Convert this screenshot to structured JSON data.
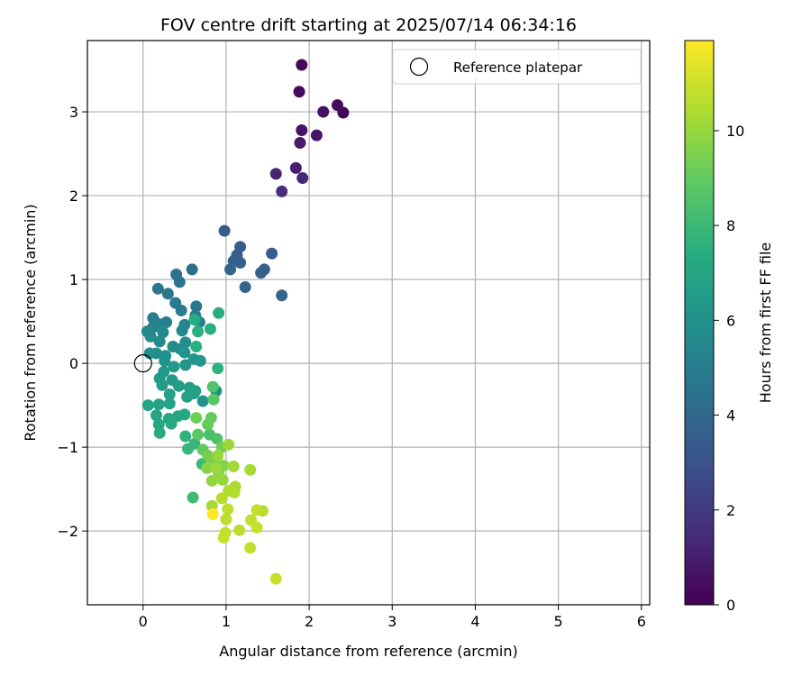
{
  "chart_data": {
    "type": "scatter",
    "title": "FOV centre drift starting at 2025/07/14 06:34:16",
    "xlabel": "Angular distance from reference (arcmin)",
    "ylabel": "Rotation from reference (arcmin)",
    "xlim": [
      -0.67,
      6.1
    ],
    "ylim": [
      -2.88,
      3.85
    ],
    "x_ticks": [
      0,
      1,
      2,
      3,
      4,
      5,
      6
    ],
    "y_ticks": [
      -2,
      -1,
      0,
      1,
      2,
      3
    ],
    "x_tick_labels": [
      "0",
      "1",
      "2",
      "3",
      "4",
      "5",
      "6"
    ],
    "y_tick_labels": [
      "−2",
      "−1",
      "0",
      "1",
      "2",
      "3"
    ],
    "grid": true,
    "legend": {
      "position": "top-right",
      "entries": [
        "Reference platepar"
      ]
    },
    "reference_point": {
      "x": 0,
      "y": 0
    },
    "colorbar": {
      "label": "Hours from first FF file",
      "colormap": "viridis",
      "range": [
        0,
        11.9
      ],
      "ticks": [
        0,
        2,
        4,
        6,
        8,
        10
      ],
      "tick_labels": [
        "0",
        "2",
        "4",
        "6",
        "8",
        "10"
      ]
    },
    "points": [
      {
        "x": 1.91,
        "y": 3.56,
        "h": 0.2
      },
      {
        "x": 1.88,
        "y": 3.24,
        "h": 0.3
      },
      {
        "x": 2.34,
        "y": 3.08,
        "h": 0.4
      },
      {
        "x": 2.41,
        "y": 2.99,
        "h": 0.2
      },
      {
        "x": 2.17,
        "y": 3.0,
        "h": 0.5
      },
      {
        "x": 1.91,
        "y": 2.78,
        "h": 0.6
      },
      {
        "x": 2.09,
        "y": 2.72,
        "h": 0.7
      },
      {
        "x": 1.89,
        "y": 2.63,
        "h": 0.8
      },
      {
        "x": 1.84,
        "y": 2.33,
        "h": 1.0
      },
      {
        "x": 1.6,
        "y": 2.26,
        "h": 1.2
      },
      {
        "x": 1.92,
        "y": 2.21,
        "h": 1.3
      },
      {
        "x": 1.67,
        "y": 2.05,
        "h": 1.5
      },
      {
        "x": 0.98,
        "y": 1.58,
        "h": 3.4
      },
      {
        "x": 1.17,
        "y": 1.39,
        "h": 3.5
      },
      {
        "x": 1.13,
        "y": 1.29,
        "h": 3.5
      },
      {
        "x": 1.55,
        "y": 1.31,
        "h": 3.4
      },
      {
        "x": 1.09,
        "y": 1.22,
        "h": 3.6
      },
      {
        "x": 1.17,
        "y": 1.2,
        "h": 3.7
      },
      {
        "x": 1.05,
        "y": 1.12,
        "h": 3.8
      },
      {
        "x": 1.46,
        "y": 1.12,
        "h": 3.6
      },
      {
        "x": 1.42,
        "y": 1.08,
        "h": 3.7
      },
      {
        "x": 1.23,
        "y": 0.91,
        "h": 3.9
      },
      {
        "x": 1.67,
        "y": 0.81,
        "h": 3.8
      },
      {
        "x": 0.59,
        "y": 1.12,
        "h": 4.3
      },
      {
        "x": 0.4,
        "y": 1.06,
        "h": 4.4
      },
      {
        "x": 0.44,
        "y": 0.97,
        "h": 4.5
      },
      {
        "x": 0.18,
        "y": 0.89,
        "h": 4.6
      },
      {
        "x": 0.3,
        "y": 0.83,
        "h": 4.7
      },
      {
        "x": 0.39,
        "y": 0.72,
        "h": 4.8
      },
      {
        "x": 0.64,
        "y": 0.68,
        "h": 4.6
      },
      {
        "x": 0.46,
        "y": 0.63,
        "h": 4.9
      },
      {
        "x": 0.63,
        "y": 0.57,
        "h": 5.0
      },
      {
        "x": 0.12,
        "y": 0.54,
        "h": 5.0
      },
      {
        "x": 0.28,
        "y": 0.49,
        "h": 5.1
      },
      {
        "x": 0.19,
        "y": 0.47,
        "h": 5.2
      },
      {
        "x": 0.5,
        "y": 0.46,
        "h": 5.3
      },
      {
        "x": 0.68,
        "y": 0.49,
        "h": 5.2
      },
      {
        "x": 0.12,
        "y": 0.43,
        "h": 5.3
      },
      {
        "x": 0.05,
        "y": 0.38,
        "h": 5.4
      },
      {
        "x": 0.24,
        "y": 0.37,
        "h": 5.5
      },
      {
        "x": 0.47,
        "y": 0.39,
        "h": 5.5
      },
      {
        "x": 0.09,
        "y": 0.32,
        "h": 5.6
      },
      {
        "x": 0.2,
        "y": 0.26,
        "h": 5.6
      },
      {
        "x": 0.51,
        "y": 0.25,
        "h": 5.7
      },
      {
        "x": 0.36,
        "y": 0.2,
        "h": 5.8
      },
      {
        "x": 0.45,
        "y": 0.17,
        "h": 5.8
      },
      {
        "x": 0.08,
        "y": 0.12,
        "h": 5.9
      },
      {
        "x": 0.16,
        "y": 0.12,
        "h": 5.9
      },
      {
        "x": 0.27,
        "y": 0.09,
        "h": 6.0
      },
      {
        "x": 0.26,
        "y": 0.03,
        "h": 6.0
      },
      {
        "x": 0.5,
        "y": 0.13,
        "h": 6.1
      },
      {
        "x": 0.61,
        "y": 0.05,
        "h": 6.2
      },
      {
        "x": 0.69,
        "y": 0.03,
        "h": 6.2
      },
      {
        "x": 0.37,
        "y": -0.04,
        "h": 6.3
      },
      {
        "x": 0.51,
        "y": -0.02,
        "h": 6.2
      },
      {
        "x": 0.25,
        "y": -0.1,
        "h": 6.3
      },
      {
        "x": 0.2,
        "y": -0.18,
        "h": 6.4
      },
      {
        "x": 0.35,
        "y": -0.2,
        "h": 6.4
      },
      {
        "x": 0.23,
        "y": -0.26,
        "h": 6.5
      },
      {
        "x": 0.43,
        "y": -0.27,
        "h": 6.5
      },
      {
        "x": 0.56,
        "y": -0.29,
        "h": 6.6
      },
      {
        "x": 0.63,
        "y": -0.33,
        "h": 6.6
      },
      {
        "x": 0.53,
        "y": -0.4,
        "h": 6.7
      },
      {
        "x": 0.61,
        "y": -0.36,
        "h": 6.7
      },
      {
        "x": 0.32,
        "y": -0.37,
        "h": 6.7
      },
      {
        "x": 0.19,
        "y": -0.49,
        "h": 6.8
      },
      {
        "x": 0.32,
        "y": -0.48,
        "h": 6.8
      },
      {
        "x": 0.06,
        "y": -0.5,
        "h": 6.9
      },
      {
        "x": 0.16,
        "y": -0.62,
        "h": 6.9
      },
      {
        "x": 0.31,
        "y": -0.66,
        "h": 7.0
      },
      {
        "x": 0.42,
        "y": -0.63,
        "h": 7.0
      },
      {
        "x": 0.5,
        "y": -0.61,
        "h": 7.1
      },
      {
        "x": 0.19,
        "y": -0.73,
        "h": 7.1
      },
      {
        "x": 0.34,
        "y": -0.72,
        "h": 7.2
      },
      {
        "x": 0.2,
        "y": -0.83,
        "h": 7.2
      },
      {
        "x": 0.88,
        "y": -0.33,
        "h": 5.9
      },
      {
        "x": 0.72,
        "y": -0.45,
        "h": 6.0
      },
      {
        "x": 0.91,
        "y": 0.6,
        "h": 7.3
      },
      {
        "x": 0.62,
        "y": 0.52,
        "h": 7.4
      },
      {
        "x": 0.81,
        "y": 0.41,
        "h": 7.4
      },
      {
        "x": 0.66,
        "y": 0.38,
        "h": 7.5
      },
      {
        "x": 0.64,
        "y": 0.2,
        "h": 7.5
      },
      {
        "x": 0.9,
        "y": -0.06,
        "h": 7.6
      },
      {
        "x": 0.84,
        "y": -0.28,
        "h": 8.6
      },
      {
        "x": 0.85,
        "y": -0.43,
        "h": 8.7
      },
      {
        "x": 0.51,
        "y": -0.87,
        "h": 7.7
      },
      {
        "x": 0.62,
        "y": -0.96,
        "h": 7.8
      },
      {
        "x": 0.54,
        "y": -1.02,
        "h": 7.9
      },
      {
        "x": 0.71,
        "y": -1.2,
        "h": 8.0
      },
      {
        "x": 0.6,
        "y": -1.6,
        "h": 8.1
      },
      {
        "x": 0.82,
        "y": -0.65,
        "h": 9.0
      },
      {
        "x": 0.64,
        "y": -0.65,
        "h": 9.2
      },
      {
        "x": 0.78,
        "y": -0.73,
        "h": 9.1
      },
      {
        "x": 0.8,
        "y": -0.85,
        "h": 8.4
      },
      {
        "x": 0.89,
        "y": -0.9,
        "h": 8.5
      },
      {
        "x": 0.66,
        "y": -0.85,
        "h": 8.8
      },
      {
        "x": 0.72,
        "y": -1.03,
        "h": 8.9
      },
      {
        "x": 0.95,
        "y": -1.0,
        "h": 9.3
      },
      {
        "x": 0.78,
        "y": -1.1,
        "h": 9.4
      },
      {
        "x": 0.85,
        "y": -1.16,
        "h": 9.5
      },
      {
        "x": 0.97,
        "y": -1.22,
        "h": 9.6
      },
      {
        "x": 0.77,
        "y": -1.25,
        "h": 9.7
      },
      {
        "x": 0.91,
        "y": -1.31,
        "h": 9.8
      },
      {
        "x": 0.83,
        "y": -1.4,
        "h": 9.9
      },
      {
        "x": 0.96,
        "y": -1.39,
        "h": 10.0
      },
      {
        "x": 1.03,
        "y": -0.97,
        "h": 10.1
      },
      {
        "x": 1.09,
        "y": -1.23,
        "h": 10.2
      },
      {
        "x": 1.29,
        "y": -1.27,
        "h": 10.3
      },
      {
        "x": 1.11,
        "y": -1.47,
        "h": 10.4
      },
      {
        "x": 1.03,
        "y": -1.52,
        "h": 10.5
      },
      {
        "x": 1.1,
        "y": -1.54,
        "h": 10.5
      },
      {
        "x": 0.95,
        "y": -1.61,
        "h": 10.6
      },
      {
        "x": 0.83,
        "y": -1.7,
        "h": 10.3
      },
      {
        "x": 1.02,
        "y": -1.74,
        "h": 10.7
      },
      {
        "x": 1.37,
        "y": -1.75,
        "h": 10.8
      },
      {
        "x": 1.44,
        "y": -1.76,
        "h": 10.6
      },
      {
        "x": 1.0,
        "y": -1.86,
        "h": 10.7
      },
      {
        "x": 1.3,
        "y": -1.87,
        "h": 10.8
      },
      {
        "x": 1.37,
        "y": -1.96,
        "h": 10.9
      },
      {
        "x": 1.16,
        "y": -1.99,
        "h": 10.7
      },
      {
        "x": 0.99,
        "y": -2.02,
        "h": 10.8
      },
      {
        "x": 0.97,
        "y": -2.08,
        "h": 10.9
      },
      {
        "x": 1.29,
        "y": -2.2,
        "h": 10.8
      },
      {
        "x": 1.6,
        "y": -2.57,
        "h": 10.9
      },
      {
        "x": 0.84,
        "y": -1.8,
        "h": 11.9
      },
      {
        "x": 0.9,
        "y": -1.1,
        "h": 10.0
      },
      {
        "x": 0.88,
        "y": -1.25,
        "h": 10.1
      }
    ]
  }
}
